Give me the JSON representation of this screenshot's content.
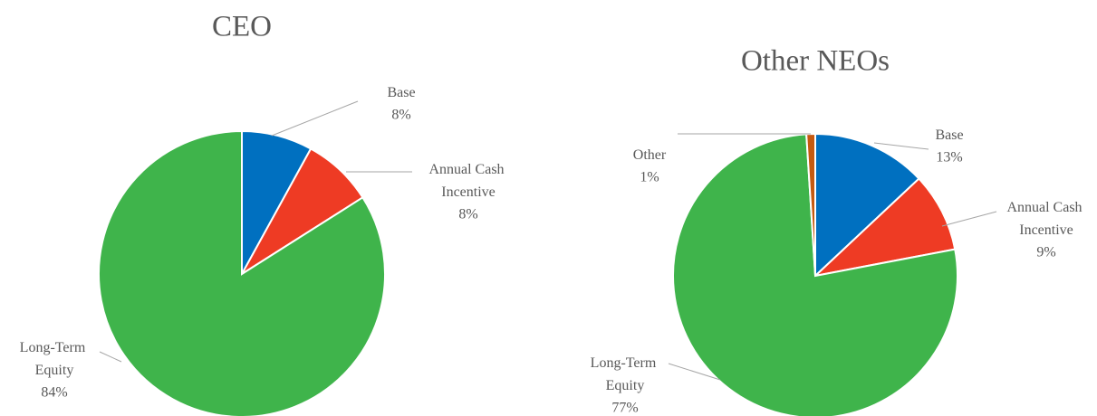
{
  "chart_data": [
    {
      "type": "pie",
      "title": "CEO",
      "categories": [
        "Base",
        "Annual Cash Incentive",
        "Long-Term Equity"
      ],
      "values": [
        8,
        8,
        84
      ],
      "value_labels": [
        "8%",
        "8%",
        "84%"
      ],
      "colors": [
        "#0070c0",
        "#ee3b24",
        "#3fb44b"
      ]
    },
    {
      "type": "pie",
      "title": "Other NEOs",
      "categories": [
        "Base",
        "Annual Cash Incentive",
        "Long-Term Equity",
        "Other"
      ],
      "values": [
        13,
        9,
        77,
        1
      ],
      "value_labels": [
        "13%",
        "9%",
        "77%",
        "1%"
      ],
      "colors": [
        "#0070c0",
        "#ee3b24",
        "#3fb44b",
        "#c55a11"
      ]
    }
  ]
}
